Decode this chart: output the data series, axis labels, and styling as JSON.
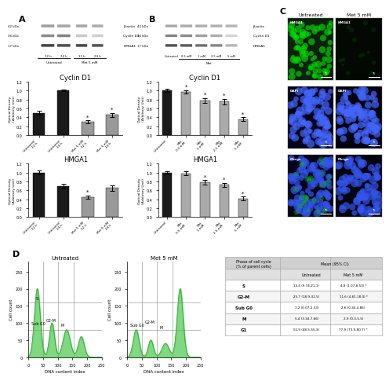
{
  "panel_A_blot": {
    "title": "A",
    "bands": [
      "β-actin",
      "Cyclin D1",
      "HMGA1"
    ],
    "kda": [
      "42 kDa",
      "36 kDa",
      "17 kDa"
    ],
    "groups": [
      "12 h",
      "24 h",
      "12 h",
      "24 h"
    ],
    "group_labels": [
      "Untreated",
      "Met 5 mM"
    ]
  },
  "panel_A_cyclinD1": {
    "title": "Cyclin D1",
    "categories": [
      "Untreated 12 h",
      "Untreated 24 h",
      "Met 5 mM 12 h",
      "Met 5 mM 24 h"
    ],
    "values": [
      0.5,
      1.0,
      0.3,
      0.45
    ],
    "errors": [
      0.05,
      0.02,
      0.03,
      0.05
    ],
    "colors": [
      "#1a1a1a",
      "#1a1a1a",
      "#999999",
      "#999999"
    ],
    "ylabel": "Optical Density\n(Arbitrary Unit)",
    "ylim": [
      0,
      1.2
    ],
    "sig": [
      false,
      false,
      true,
      true
    ]
  },
  "panel_A_HMGA1": {
    "title": "HMGA1",
    "categories": [
      "Untreated 12 h",
      "Untreated 24 h",
      "Met 5 mM 12 h",
      "Met 5 mM 24 h"
    ],
    "values": [
      1.0,
      0.7,
      0.45,
      0.65
    ],
    "errors": [
      0.05,
      0.04,
      0.04,
      0.06
    ],
    "colors": [
      "#1a1a1a",
      "#1a1a1a",
      "#999999",
      "#999999"
    ],
    "ylabel": "Optical Density\n(Arbitrary Unit)",
    "ylim": [
      0,
      1.2
    ],
    "sig": [
      false,
      false,
      true,
      false
    ]
  },
  "panel_B_blot": {
    "title": "B",
    "bands": [
      "β-actin",
      "Cyclin D1",
      "HMGA1"
    ],
    "kda": [
      "42 kDa",
      "36 kDa",
      "17 kDa"
    ],
    "groups": [
      "Untreated",
      "0.5 mM",
      "1 mM",
      "2.5 mM",
      "5 mM"
    ]
  },
  "panel_B_cyclinD1": {
    "title": "Cyclin D1",
    "categories": [
      "Untreated",
      "Met 0.5 mM",
      "Met 1 mM",
      "Met 2.5 mM",
      "Met 5 mM"
    ],
    "values": [
      1.0,
      0.97,
      0.78,
      0.75,
      0.36
    ],
    "errors": [
      0.03,
      0.04,
      0.05,
      0.06,
      0.04
    ],
    "colors": [
      "#1a1a1a",
      "#aaaaaa",
      "#aaaaaa",
      "#aaaaaa",
      "#aaaaaa"
    ],
    "ylabel": "Optical Density\n(Arbitrary Unit)",
    "ylim": [
      0,
      1.2
    ],
    "sig": [
      false,
      true,
      true,
      true,
      true
    ]
  },
  "panel_B_HMGA1": {
    "title": "HMGA1",
    "categories": [
      "Untreated",
      "Met 0.5 mM",
      "Met 1 mM",
      "Met 2.5 mM",
      "Met 5 mM"
    ],
    "values": [
      1.0,
      0.98,
      0.78,
      0.72,
      0.42
    ],
    "errors": [
      0.03,
      0.04,
      0.05,
      0.05,
      0.04
    ],
    "colors": [
      "#1a1a1a",
      "#aaaaaa",
      "#aaaaaa",
      "#aaaaaa",
      "#aaaaaa"
    ],
    "ylabel": "Optical Density\n(Arbitrary Unit)",
    "ylim": [
      0,
      1.2
    ],
    "sig": [
      false,
      false,
      true,
      true,
      true
    ]
  },
  "panel_C": {
    "title": "C",
    "rows": [
      "HMGA1",
      "DAPI",
      "Merge"
    ],
    "cols": [
      "Untreated",
      "Met 5 mM"
    ]
  },
  "panel_D": {
    "title": "D",
    "plots": [
      "Untreated",
      "Met 5 mM"
    ]
  },
  "table": {
    "rows": [
      [
        "S",
        "15.4 (9.74-21-1)",
        "4.8 (1.07-8.53) *"
      ],
      [
        "G2-M",
        "25.7 (18.9-32.5)",
        "11.6 (4.81-18.4) *"
      ],
      [
        "Sub G0",
        "1.2 (0.07-2.33)",
        "2.6 (0.34-4.86)"
      ],
      [
        "M",
        "5.4 (3.34-7.66)",
        "2.9 (0.3-5.5)"
      ],
      [
        "G1",
        "51.9 (48.5-55.3)",
        "77.9 (73.9-80.7) *"
      ]
    ]
  },
  "bg_color": "#ffffff",
  "bar_width": 0.5,
  "fontsize_title": 6,
  "fontsize_tick": 4.5,
  "fontsize_label": 4.5
}
